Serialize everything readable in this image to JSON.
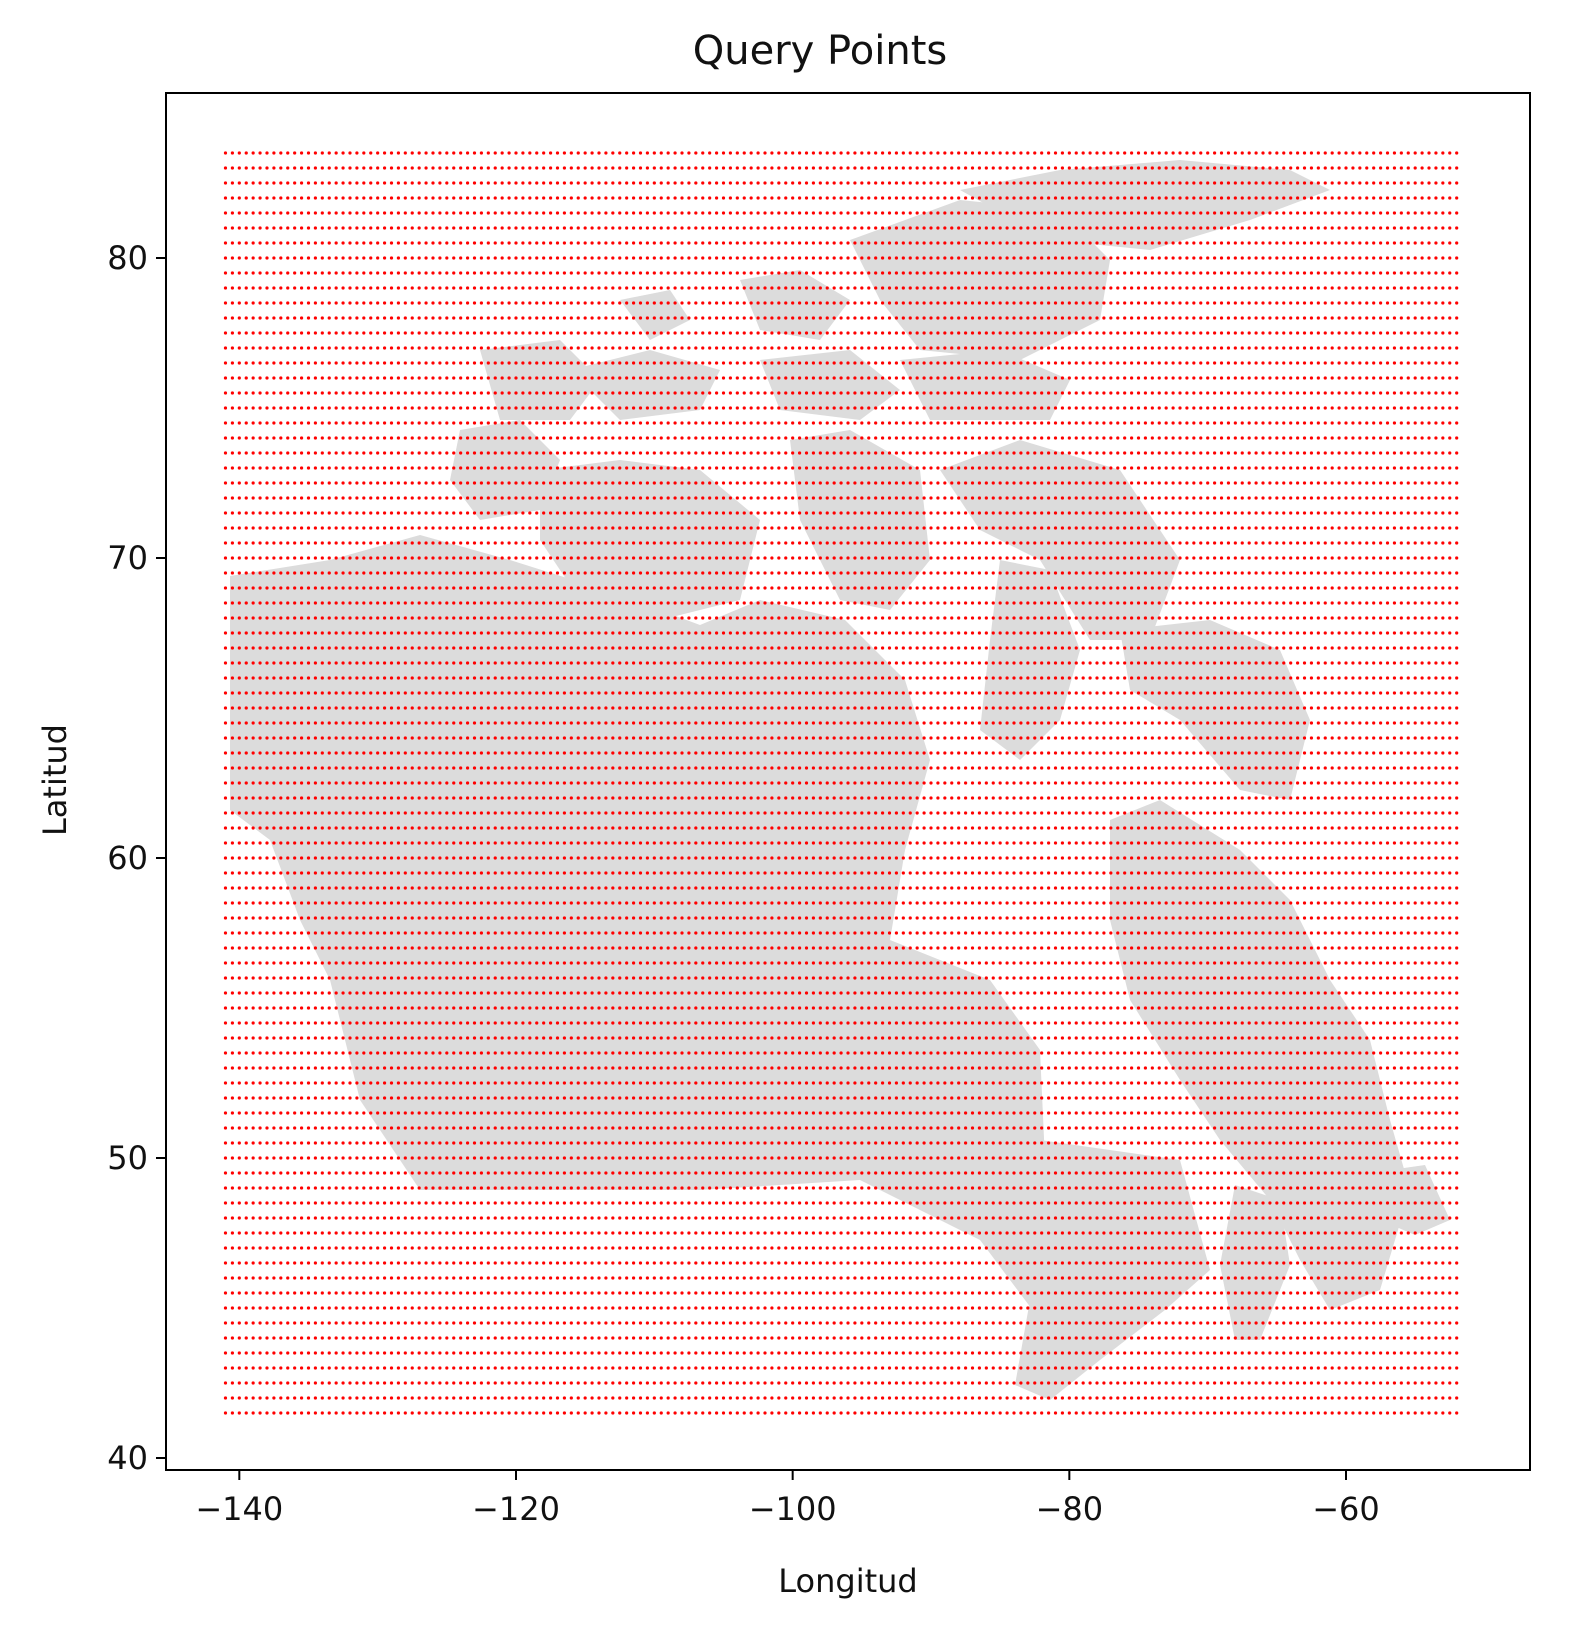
{
  "chart_data": {
    "type": "scatter",
    "title": "Query Points",
    "xlabel": "Longitud",
    "ylabel": "Latitud",
    "xlim": [
      -145.3,
      -46.7
    ],
    "ylim": [
      39.6,
      85.5
    ],
    "xticks": [
      -140,
      -120,
      -100,
      -80,
      -60
    ],
    "xtick_labels": [
      "−140",
      "−120",
      "−100",
      "−80",
      "−60"
    ],
    "yticks": [
      40,
      50,
      60,
      70,
      80
    ],
    "ytick_labels": [
      "40",
      "50",
      "60",
      "70",
      "80"
    ],
    "grid": false,
    "series": [
      {
        "marker": "dot",
        "color": "#ff0000",
        "x_range": [
          -141.0,
          -52.0
        ],
        "y_range": [
          41.5,
          83.5
        ],
        "x_count": 179,
        "y_count": 85
      }
    ],
    "background_map_color": "#dcdcdc"
  }
}
